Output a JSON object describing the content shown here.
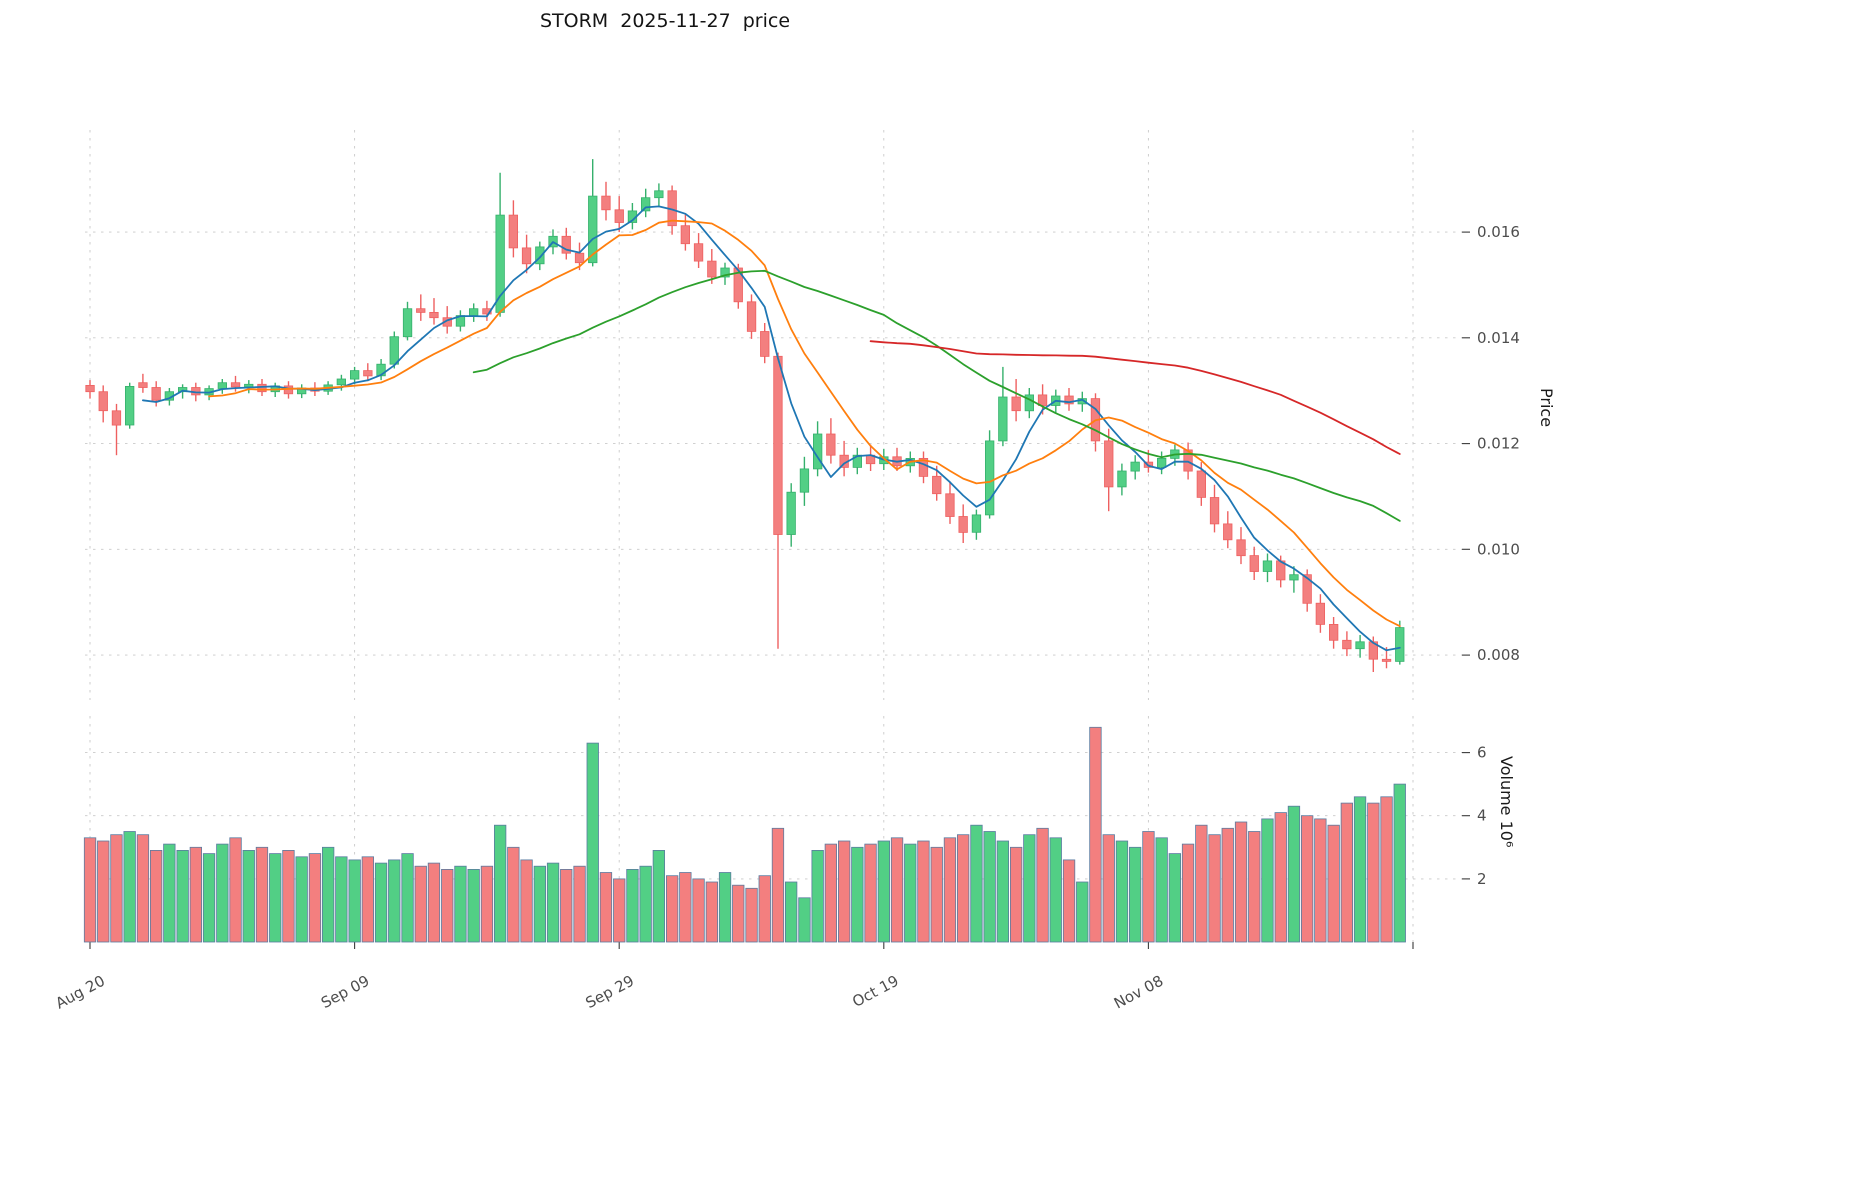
{
  "title": "STORM  2025-11-27  price",
  "axes": {
    "price_label": "Price",
    "volume_label": "Volume 10⁶",
    "price_ticks": [
      {
        "v": 0.008,
        "label": "0.008"
      },
      {
        "v": 0.01,
        "label": "0.010"
      },
      {
        "v": 0.012,
        "label": "0.012"
      },
      {
        "v": 0.014,
        "label": "0.014"
      },
      {
        "v": 0.016,
        "label": "0.016"
      }
    ],
    "volume_ticks": [
      {
        "v": 2,
        "label": "2"
      },
      {
        "v": 4,
        "label": "4"
      },
      {
        "v": 6,
        "label": "6"
      }
    ],
    "x_ticks": [
      {
        "i": 0,
        "label": "Aug 20"
      },
      {
        "i": 20,
        "label": "Sep 09"
      },
      {
        "i": 40,
        "label": "Sep 29"
      },
      {
        "i": 60,
        "label": "Oct 19"
      },
      {
        "i": 80,
        "label": "Nov 08"
      },
      {
        "i": 100,
        "label": ""
      }
    ]
  },
  "colors": {
    "up": "#52cf85",
    "down": "#f37f7f",
    "up_wick": "#35b06c",
    "down_wick": "#ee6060",
    "volume_edge": "#5a7ba0",
    "grid": "#c9c9c9"
  },
  "chart_data": {
    "type": "candlestick",
    "symbol": "STORM",
    "as_of": "2025-11-27",
    "grid": true,
    "price_ylim": [
      0.00715,
      0.01793
    ],
    "volume_ylim": [
      0,
      7.0
    ],
    "ohlc": [
      [
        0.0131,
        0.0132,
        0.01285,
        0.01298
      ],
      [
        0.01298,
        0.0131,
        0.0124,
        0.01262
      ],
      [
        0.01262,
        0.01275,
        0.01178,
        0.01235
      ],
      [
        0.01235,
        0.01315,
        0.01228,
        0.01308
      ],
      [
        0.01315,
        0.01332,
        0.01296,
        0.01306
      ],
      [
        0.01306,
        0.01318,
        0.0127,
        0.01282
      ],
      [
        0.01282,
        0.01305,
        0.01272,
        0.01298
      ],
      [
        0.01298,
        0.01312,
        0.01285,
        0.01306
      ],
      [
        0.01306,
        0.01315,
        0.0128,
        0.01292
      ],
      [
        0.01292,
        0.0131,
        0.01282,
        0.01304
      ],
      [
        0.01304,
        0.01322,
        0.01294,
        0.01315
      ],
      [
        0.01315,
        0.01328,
        0.01298,
        0.01307
      ],
      [
        0.01307,
        0.0132,
        0.01295,
        0.01312
      ],
      [
        0.01312,
        0.01322,
        0.0129,
        0.01298
      ],
      [
        0.01298,
        0.01315,
        0.01288,
        0.01309
      ],
      [
        0.01309,
        0.01318,
        0.01285,
        0.01294
      ],
      [
        0.01294,
        0.01312,
        0.01286,
        0.01305
      ],
      [
        0.01305,
        0.01316,
        0.0129,
        0.01299
      ],
      [
        0.01299,
        0.01318,
        0.01292,
        0.01311
      ],
      [
        0.01311,
        0.0133,
        0.013,
        0.01322
      ],
      [
        0.01322,
        0.01345,
        0.01312,
        0.01338
      ],
      [
        0.01338,
        0.01352,
        0.01318,
        0.01328
      ],
      [
        0.01328,
        0.0136,
        0.0132,
        0.0135
      ],
      [
        0.0135,
        0.01412,
        0.01342,
        0.01402
      ],
      [
        0.01402,
        0.01468,
        0.01395,
        0.01455
      ],
      [
        0.01455,
        0.01482,
        0.01432,
        0.01448
      ],
      [
        0.01448,
        0.01475,
        0.01425,
        0.01438
      ],
      [
        0.01438,
        0.0146,
        0.01408,
        0.01422
      ],
      [
        0.01422,
        0.01452,
        0.01412,
        0.01442
      ],
      [
        0.01442,
        0.01465,
        0.0143,
        0.01455
      ],
      [
        0.01455,
        0.0147,
        0.01432,
        0.01445
      ],
      [
        0.01448,
        0.01712,
        0.0144,
        0.01632
      ],
      [
        0.01632,
        0.0166,
        0.01552,
        0.0157
      ],
      [
        0.0157,
        0.01595,
        0.01522,
        0.0154
      ],
      [
        0.0154,
        0.01582,
        0.01528,
        0.01572
      ],
      [
        0.01572,
        0.01605,
        0.01558,
        0.01592
      ],
      [
        0.01592,
        0.01608,
        0.01548,
        0.0156
      ],
      [
        0.0156,
        0.0158,
        0.01528,
        0.01542
      ],
      [
        0.01542,
        0.01738,
        0.01535,
        0.01668
      ],
      [
        0.01668,
        0.01695,
        0.01622,
        0.01642
      ],
      [
        0.01642,
        0.01668,
        0.016,
        0.01618
      ],
      [
        0.01618,
        0.01655,
        0.01605,
        0.0164
      ],
      [
        0.0164,
        0.01682,
        0.01628,
        0.01665
      ],
      [
        0.01665,
        0.01692,
        0.01648,
        0.01678
      ],
      [
        0.01678,
        0.01688,
        0.01595,
        0.01612
      ],
      [
        0.01612,
        0.01635,
        0.01565,
        0.01578
      ],
      [
        0.01578,
        0.01598,
        0.01532,
        0.01545
      ],
      [
        0.01545,
        0.01568,
        0.01502,
        0.01515
      ],
      [
        0.01515,
        0.01542,
        0.015,
        0.01532
      ],
      [
        0.01532,
        0.0154,
        0.01455,
        0.01468
      ],
      [
        0.01468,
        0.01482,
        0.01398,
        0.01412
      ],
      [
        0.01412,
        0.01428,
        0.01352,
        0.01365
      ],
      [
        0.01365,
        0.01372,
        0.00812,
        0.01028
      ],
      [
        0.01028,
        0.01125,
        0.01005,
        0.01108
      ],
      [
        0.01108,
        0.01175,
        0.01082,
        0.01152
      ],
      [
        0.01152,
        0.01242,
        0.01138,
        0.01218
      ],
      [
        0.01218,
        0.01248,
        0.01162,
        0.01178
      ],
      [
        0.01178,
        0.01205,
        0.01138,
        0.01155
      ],
      [
        0.01155,
        0.01192,
        0.01142,
        0.01178
      ],
      [
        0.01178,
        0.01198,
        0.01148,
        0.01162
      ],
      [
        0.01162,
        0.0119,
        0.0115,
        0.01175
      ],
      [
        0.01175,
        0.01192,
        0.01148,
        0.01158
      ],
      [
        0.01158,
        0.01185,
        0.01145,
        0.01172
      ],
      [
        0.01172,
        0.01185,
        0.01125,
        0.01138
      ],
      [
        0.01138,
        0.01158,
        0.01092,
        0.01105
      ],
      [
        0.01105,
        0.01128,
        0.01048,
        0.01062
      ],
      [
        0.01062,
        0.01085,
        0.01012,
        0.01032
      ],
      [
        0.01032,
        0.01075,
        0.01018,
        0.01065
      ],
      [
        0.01065,
        0.01225,
        0.01058,
        0.01205
      ],
      [
        0.01205,
        0.01345,
        0.01195,
        0.01288
      ],
      [
        0.01288,
        0.01322,
        0.01242,
        0.01262
      ],
      [
        0.01262,
        0.01305,
        0.01248,
        0.01292
      ],
      [
        0.01292,
        0.01312,
        0.01255,
        0.01272
      ],
      [
        0.01272,
        0.01302,
        0.01258,
        0.0129
      ],
      [
        0.0129,
        0.01305,
        0.01262,
        0.01275
      ],
      [
        0.01275,
        0.01298,
        0.0126,
        0.01285
      ],
      [
        0.01285,
        0.01295,
        0.01185,
        0.01205
      ],
      [
        0.01205,
        0.01228,
        0.01072,
        0.01118
      ],
      [
        0.01118,
        0.01162,
        0.01102,
        0.01148
      ],
      [
        0.01148,
        0.01178,
        0.01132,
        0.01165
      ],
      [
        0.01165,
        0.01188,
        0.01145,
        0.01155
      ],
      [
        0.01155,
        0.01185,
        0.01142,
        0.01172
      ],
      [
        0.01172,
        0.01198,
        0.01158,
        0.01188
      ],
      [
        0.01188,
        0.01202,
        0.01132,
        0.01148
      ],
      [
        0.01148,
        0.01165,
        0.01082,
        0.01098
      ],
      [
        0.01098,
        0.01122,
        0.01032,
        0.01048
      ],
      [
        0.01048,
        0.01072,
        0.01002,
        0.01018
      ],
      [
        0.01018,
        0.01042,
        0.00972,
        0.00988
      ],
      [
        0.00988,
        0.01005,
        0.00942,
        0.00958
      ],
      [
        0.00958,
        0.00992,
        0.00938,
        0.00978
      ],
      [
        0.00978,
        0.00988,
        0.00928,
        0.00942
      ],
      [
        0.00942,
        0.00968,
        0.00918,
        0.00952
      ],
      [
        0.00952,
        0.00962,
        0.00882,
        0.00898
      ],
      [
        0.00898,
        0.00915,
        0.00842,
        0.00858
      ],
      [
        0.00858,
        0.00872,
        0.00812,
        0.00828
      ],
      [
        0.00828,
        0.00845,
        0.00798,
        0.00812
      ],
      [
        0.00812,
        0.00838,
        0.00795,
        0.00825
      ],
      [
        0.00825,
        0.00835,
        0.00768,
        0.00792
      ],
      [
        0.00792,
        0.00815,
        0.00775,
        0.00788
      ],
      [
        0.00788,
        0.00865,
        0.00782,
        0.00852
      ]
    ],
    "volume_millions": [
      3.3,
      3.2,
      3.4,
      3.5,
      3.4,
      2.9,
      3.1,
      2.9,
      3.0,
      2.8,
      3.1,
      3.3,
      2.9,
      3.0,
      2.8,
      2.9,
      2.7,
      2.8,
      3.0,
      2.7,
      2.6,
      2.7,
      2.5,
      2.6,
      2.8,
      2.4,
      2.5,
      2.3,
      2.4,
      2.3,
      2.4,
      3.7,
      3.0,
      2.6,
      2.4,
      2.5,
      2.3,
      2.4,
      6.3,
      2.2,
      2.0,
      2.3,
      2.4,
      2.9,
      2.1,
      2.2,
      2.0,
      1.9,
      2.2,
      1.8,
      1.7,
      2.1,
      3.6,
      1.9,
      1.4,
      2.9,
      3.1,
      3.2,
      3.0,
      3.1,
      3.2,
      3.3,
      3.1,
      3.2,
      3.0,
      3.3,
      3.4,
      3.7,
      3.5,
      3.2,
      3.0,
      3.4,
      3.6,
      3.3,
      2.6,
      1.9,
      6.8,
      3.4,
      3.2,
      3.0,
      3.5,
      3.3,
      2.8,
      3.1,
      3.7,
      3.4,
      3.6,
      3.8,
      3.5,
      3.9,
      4.1,
      4.3,
      4.0,
      3.9,
      3.7,
      4.4,
      4.6,
      4.4,
      4.6,
      5.0
    ],
    "moving_averages": [
      {
        "name": "ma5",
        "period": 5,
        "color": "#1f77b4"
      },
      {
        "name": "ma10",
        "period": 10,
        "color": "#ff7f0e"
      },
      {
        "name": "ma30",
        "period": 30,
        "color": "#2ca02c"
      },
      {
        "name": "ma60",
        "period": 60,
        "color": "#d62728"
      }
    ]
  }
}
